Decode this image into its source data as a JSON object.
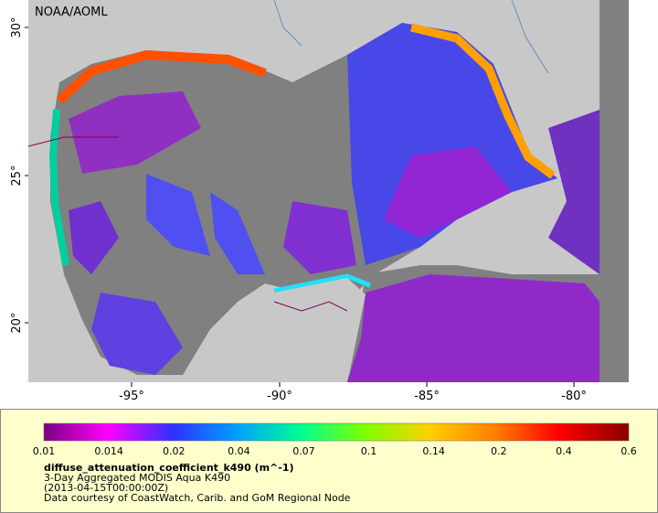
{
  "map": {
    "source": "NOAA/AOML",
    "lat_labels": [
      "30°",
      "25°",
      "20°"
    ],
    "lon_labels": [
      "-95°",
      "-90°",
      "-85°",
      "-80°"
    ],
    "colorbar": {
      "labels": [
        "0.01",
        "0.014",
        "0.02",
        "0.04",
        "0.07",
        "0.1",
        "0.14",
        "0.2",
        "0.4",
        "0.6"
      ],
      "variable": "diffuse_attenuation_coefficient_k490 (m^-1)",
      "description": "3-Day Aggregated MODIS Aqua K490",
      "time": "(2013-04-15T00:00:00Z)",
      "credit": "Data courtesy of CoastWatch, Carib. and GoM Regional Node"
    }
  }
}
